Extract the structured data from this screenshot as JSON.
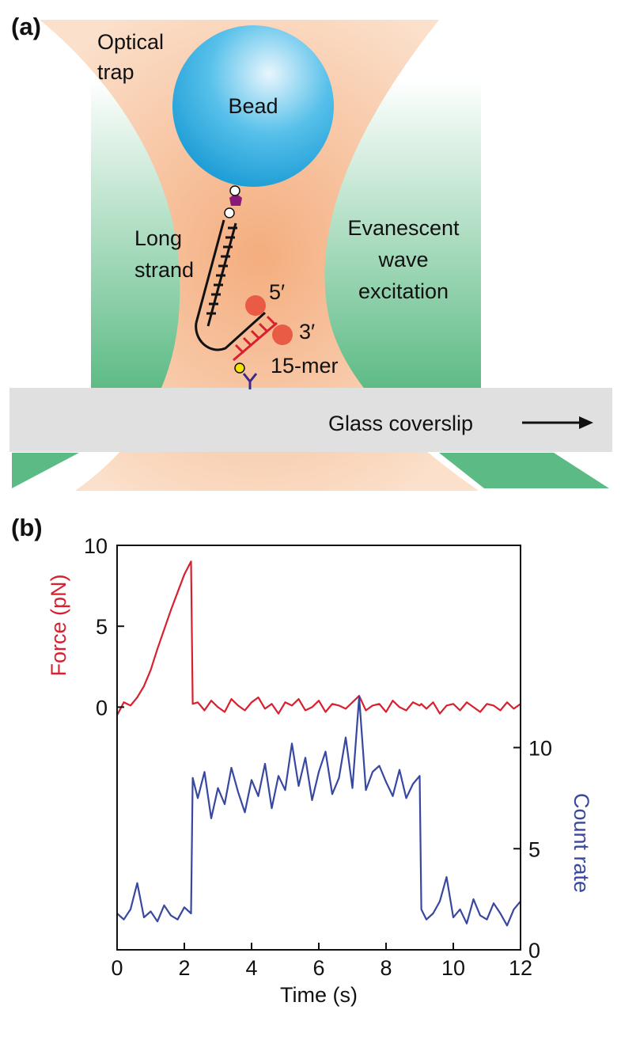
{
  "diagram": {
    "panel_a": "(a)",
    "optical_trap": [
      "Optical",
      "trap"
    ],
    "bead": "Bead",
    "long_strand": [
      "Long",
      "strand"
    ],
    "evanescent": [
      "Evanescent",
      "wave",
      "excitation"
    ],
    "five_prime": "5′",
    "three_prime": "3′",
    "oligo": "15-mer",
    "coverslip": "Glass coverslip"
  },
  "chart_data": {
    "type": "line",
    "panel": "(b)",
    "xlabel": "Time (s)",
    "ylabel": "Force (pN)",
    "y2label": "Count rate",
    "x": [
      0,
      0.2,
      0.4,
      0.6,
      0.8,
      1,
      1.2,
      1.4,
      1.6,
      1.8,
      2,
      2.2,
      2.25,
      2.4,
      2.6,
      2.8,
      3,
      3.2,
      3.4,
      3.6,
      3.8,
      4,
      4.2,
      4.4,
      4.6,
      4.8,
      5,
      5.2,
      5.4,
      5.6,
      5.8,
      6,
      6.2,
      6.4,
      6.6,
      6.8,
      7,
      7.2,
      7.4,
      7.6,
      7.8,
      8,
      8.2,
      8.4,
      8.6,
      8.8,
      9,
      9.05,
      9.2,
      9.4,
      9.6,
      9.8,
      10,
      10.2,
      10.4,
      10.6,
      10.8,
      11,
      11.2,
      11.4,
      11.6,
      11.8,
      12
    ],
    "xlim": [
      0,
      12
    ],
    "xticks": [
      0,
      2,
      4,
      6,
      8,
      10,
      12
    ],
    "ylim": [
      -15,
      10
    ],
    "yticks": [
      0,
      5,
      10
    ],
    "y2lim": [
      0,
      20
    ],
    "y2ticks": [
      0,
      5,
      10
    ],
    "series": [
      {
        "color": "#d8202e",
        "axis": "y",
        "values": [
          -0.5,
          0.3,
          0.1,
          0.6,
          1.3,
          2.3,
          3.6,
          4.8,
          6.0,
          7.1,
          8.2,
          9.0,
          0.2,
          0.3,
          -0.2,
          0.4,
          0,
          -0.3,
          0.5,
          0.1,
          -0.2,
          0.3,
          0.6,
          -0.1,
          0.2,
          -0.4,
          0.3,
          0.1,
          0.5,
          -0.2,
          0,
          0.4,
          -0.3,
          0.2,
          0.1,
          -0.1,
          0.3,
          0.7,
          -0.2,
          0.1,
          0.2,
          -0.3,
          0.4,
          0,
          -0.2,
          0.3,
          0.1,
          0.2,
          -0.1,
          0.3,
          -0.4,
          0.1,
          0.2,
          -0.2,
          0.3,
          0,
          -0.3,
          0.2,
          0.1,
          -0.2,
          0.3,
          -0.1,
          0.2
        ]
      },
      {
        "color": "#3848a0",
        "axis": "y2",
        "values": [
          1.8,
          1.5,
          2.0,
          3.3,
          1.6,
          1.9,
          1.4,
          2.2,
          1.7,
          1.5,
          2.1,
          1.8,
          8.5,
          7.5,
          8.8,
          6.5,
          8.0,
          7.2,
          9.0,
          7.8,
          6.8,
          8.4,
          7.6,
          9.2,
          7.0,
          8.6,
          7.9,
          10.2,
          8.1,
          9.5,
          7.4,
          8.8,
          9.8,
          7.7,
          8.5,
          10.5,
          8.0,
          12.5,
          7.9,
          8.8,
          9.1,
          8.3,
          7.6,
          8.9,
          7.5,
          8.2,
          8.6,
          2.0,
          1.5,
          1.8,
          2.4,
          3.6,
          1.6,
          2.0,
          1.3,
          2.5,
          1.7,
          1.5,
          2.3,
          1.8,
          1.2,
          2.0,
          2.4
        ]
      }
    ]
  }
}
